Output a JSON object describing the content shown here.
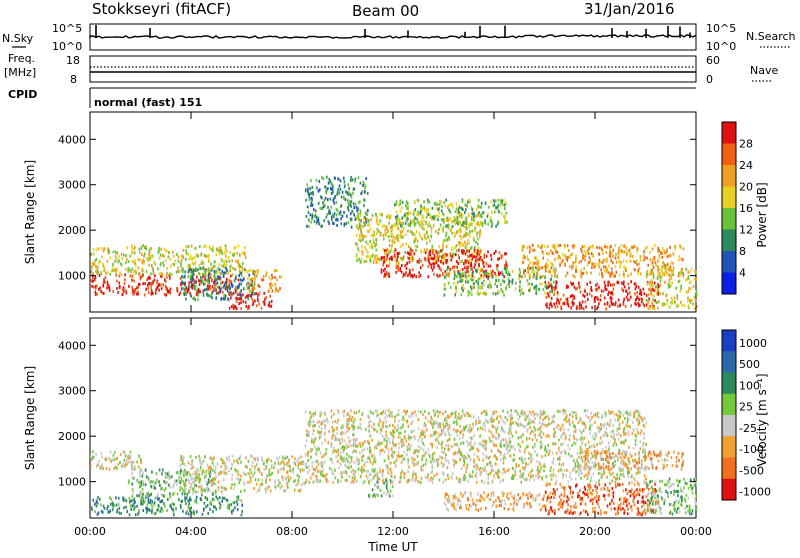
{
  "header": {
    "station": "Stokkseyri (fitACF)",
    "beam": "Beam 00",
    "date": "31/Jan/2016"
  },
  "top_panels": {
    "nsky_label": "N.Sky",
    "nsky_ticks": [
      "10^5",
      "10^0"
    ],
    "nsearch_label": "N.Search",
    "nsearch_ticks": [
      "10^5",
      "10^0"
    ],
    "freq_label_1": "Freq.",
    "freq_label_2": "[MHz]",
    "freq_ticks": [
      "18",
      "8"
    ],
    "nave_label": "Nave",
    "nave_ticks": [
      "60",
      "0"
    ],
    "cpid_label": "CPID",
    "cpid_value": "normal (fast) 151"
  },
  "chart_data": [
    {
      "type": "heatmap",
      "name": "power",
      "xlabel": "Time UT",
      "ylabel": "Slant Range [km]",
      "x_ticks": [
        "00:00",
        "04:00",
        "08:00",
        "12:00",
        "16:00",
        "20:00",
        "00:00"
      ],
      "y_ticks": [
        "1000",
        "2000",
        "3000",
        "4000"
      ],
      "ylim": [
        200,
        4600
      ],
      "colorbar_label": "Power [dB]",
      "colorbar_ticks": [
        "4",
        "8",
        "12",
        "16",
        "20",
        "24",
        "28"
      ],
      "colors": [
        "#0a1ee6",
        "#1f55b8",
        "#2d8a5a",
        "#6ac23a",
        "#e6d020",
        "#f0a020",
        "#f06010",
        "#e01010"
      ],
      "blobs": [
        {
          "t0": 0.0,
          "t1": 6.0,
          "r0": 600,
          "r1": 1050,
          "level": 7
        },
        {
          "t0": 0.0,
          "t1": 6.2,
          "r0": 1050,
          "r1": 1700,
          "level": 4
        },
        {
          "t0": 3.6,
          "t1": 6.5,
          "r0": 500,
          "r1": 1200,
          "level": 2
        },
        {
          "t0": 5.5,
          "t1": 7.2,
          "r0": 300,
          "r1": 650,
          "level": 7
        },
        {
          "t0": 6.2,
          "t1": 7.6,
          "r0": 650,
          "r1": 1150,
          "level": 5
        },
        {
          "t0": 8.5,
          "t1": 11.0,
          "r0": 2100,
          "r1": 3200,
          "level": 2
        },
        {
          "t0": 10.5,
          "t1": 15.5,
          "r0": 1300,
          "r1": 2400,
          "level": 4
        },
        {
          "t0": 11.5,
          "t1": 16.5,
          "r0": 1000,
          "r1": 1600,
          "level": 7
        },
        {
          "t0": 12.0,
          "t1": 16.5,
          "r0": 2100,
          "r1": 2700,
          "level": 3
        },
        {
          "t0": 14.0,
          "t1": 18.5,
          "r0": 600,
          "r1": 1200,
          "level": 3
        },
        {
          "t0": 17.0,
          "t1": 23.5,
          "r0": 1000,
          "r1": 1700,
          "level": 5
        },
        {
          "t0": 18.0,
          "t1": 22.5,
          "r0": 300,
          "r1": 900,
          "level": 7
        },
        {
          "t0": 22.0,
          "t1": 24.0,
          "r0": 300,
          "r1": 1200,
          "level": 4
        }
      ]
    },
    {
      "type": "heatmap",
      "name": "velocity",
      "xlabel": "Time UT",
      "ylabel": "Slant Range [km]",
      "x_ticks": [
        "00:00",
        "04:00",
        "08:00",
        "12:00",
        "16:00",
        "20:00",
        "00:00"
      ],
      "y_ticks": [
        "1000",
        "2000",
        "3000",
        "4000"
      ],
      "ylim": [
        200,
        4600
      ],
      "colorbar_label": "Velocity [m s⁻¹]",
      "colorbar_ticks": [
        "1000",
        "500",
        "100",
        "25",
        "-25",
        "-100",
        "-500",
        "-1000"
      ],
      "colors": [
        "#1a3fc0",
        "#2a6aa8",
        "#2f8a5a",
        "#74c83c",
        "#c8c8c8",
        "#f0a030",
        "#f07020",
        "#e01010"
      ],
      "blobs": [
        {
          "t0": 0.0,
          "t1": 6.0,
          "r0": 300,
          "r1": 700,
          "level": 2
        },
        {
          "t0": 1.5,
          "t1": 5.0,
          "r0": 700,
          "r1": 1300,
          "level": 3
        },
        {
          "t0": 3.5,
          "t1": 8.5,
          "r0": 800,
          "r1": 1600,
          "level": 4
        },
        {
          "t0": 0.0,
          "t1": 2.0,
          "r0": 1300,
          "r1": 1700,
          "level": 4
        },
        {
          "t0": 8.5,
          "t1": 22.0,
          "r0": 1000,
          "r1": 2600,
          "level": 4
        },
        {
          "t0": 11.0,
          "t1": 12.0,
          "r0": 700,
          "r1": 1100,
          "level": 3
        },
        {
          "t0": 14.0,
          "t1": 18.0,
          "r0": 400,
          "r1": 800,
          "level": 5
        },
        {
          "t0": 18.0,
          "t1": 22.5,
          "r0": 300,
          "r1": 1000,
          "level": 6
        },
        {
          "t0": 19.5,
          "t1": 23.5,
          "r0": 1300,
          "r1": 1700,
          "level": 5
        },
        {
          "t0": 22.0,
          "t1": 24.0,
          "r0": 300,
          "r1": 1100,
          "level": 3
        }
      ]
    }
  ]
}
